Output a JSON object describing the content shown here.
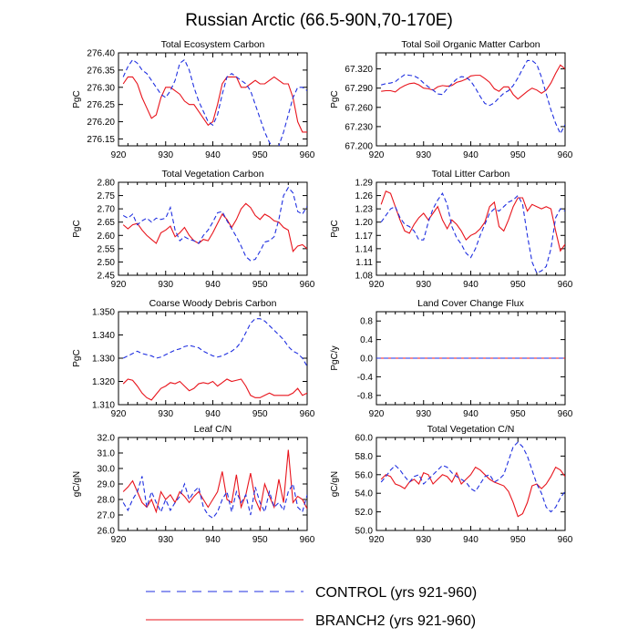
{
  "title": "Russian Arctic (66.5-90N,70-170E)",
  "colors": {
    "control": "#1f2fe0",
    "branch": "#e8141c"
  },
  "legend": {
    "control": "CONTROL (yrs 921-960)",
    "branch": "BRANCH2 (yrs 921-960)"
  },
  "chart_data": [
    {
      "type": "line",
      "title": "Total Ecosystem Carbon",
      "ylabel": "PgC",
      "xlim": [
        920,
        960
      ],
      "xticks": [
        920,
        930,
        940,
        950,
        960
      ],
      "ylim": [
        276.13,
        276.4
      ],
      "yticks": [
        "276.40",
        "276.35",
        "276.30",
        "276.25",
        "276.20",
        "276.15"
      ],
      "x": [
        921,
        922,
        923,
        924,
        925,
        926,
        927,
        928,
        929,
        930,
        931,
        932,
        933,
        934,
        935,
        936,
        937,
        938,
        939,
        940,
        941,
        942,
        943,
        944,
        945,
        946,
        947,
        948,
        949,
        950,
        951,
        952,
        953,
        954,
        955,
        956,
        957,
        958,
        959,
        960
      ],
      "series": [
        {
          "name": "CONTROL",
          "values": [
            276.33,
            276.36,
            276.38,
            276.37,
            276.35,
            276.34,
            276.32,
            276.3,
            276.28,
            276.27,
            276.29,
            276.32,
            276.37,
            276.38,
            276.35,
            276.3,
            276.26,
            276.23,
            276.2,
            276.19,
            276.22,
            276.28,
            276.33,
            276.34,
            276.33,
            276.32,
            276.31,
            276.29,
            276.25,
            276.21,
            276.17,
            276.14,
            276.12,
            276.13,
            276.17,
            276.22,
            276.27,
            276.3,
            276.3,
            276.29
          ]
        },
        {
          "name": "BRANCH2",
          "values": [
            276.31,
            276.33,
            276.33,
            276.31,
            276.27,
            276.24,
            276.21,
            276.22,
            276.27,
            276.3,
            276.3,
            276.29,
            276.28,
            276.26,
            276.25,
            276.25,
            276.23,
            276.21,
            276.19,
            276.2,
            276.25,
            276.31,
            276.33,
            276.33,
            276.33,
            276.3,
            276.3,
            276.31,
            276.32,
            276.31,
            276.31,
            276.32,
            276.33,
            276.32,
            276.31,
            276.31,
            276.27,
            276.2,
            276.17,
            276.17
          ]
        }
      ]
    },
    {
      "type": "line",
      "title": "Total Soil Organic Matter Carbon",
      "ylabel": "PgC",
      "xlim": [
        920,
        960
      ],
      "xticks": [
        920,
        930,
        940,
        950,
        960
      ],
      "ylim": [
        67.2,
        67.345
      ],
      "yticks": [
        "67.320",
        "67.290",
        "67.260",
        "67.230",
        "67.200"
      ],
      "x": [
        921,
        922,
        923,
        924,
        925,
        926,
        927,
        928,
        929,
        930,
        931,
        932,
        933,
        934,
        935,
        936,
        937,
        938,
        939,
        940,
        941,
        942,
        943,
        944,
        945,
        946,
        947,
        948,
        949,
        950,
        951,
        952,
        953,
        954,
        955,
        956,
        957,
        958,
        959,
        960
      ],
      "series": [
        {
          "name": "CONTROL",
          "values": [
            67.295,
            67.297,
            67.298,
            67.3,
            67.306,
            67.311,
            67.31,
            67.309,
            67.305,
            67.298,
            67.292,
            67.287,
            67.281,
            67.28,
            67.289,
            67.297,
            67.304,
            67.308,
            67.307,
            67.301,
            67.29,
            67.277,
            67.266,
            67.263,
            67.267,
            67.275,
            67.282,
            67.286,
            67.294,
            67.306,
            67.32,
            67.333,
            67.333,
            67.327,
            67.307,
            67.281,
            67.256,
            67.235,
            67.219,
            67.233
          ]
        },
        {
          "name": "BRANCH2",
          "values": [
            67.285,
            67.286,
            67.286,
            67.284,
            67.29,
            67.294,
            67.297,
            67.298,
            67.295,
            67.29,
            67.289,
            67.287,
            67.292,
            67.294,
            67.293,
            67.294,
            67.299,
            67.301,
            67.304,
            67.309,
            67.31,
            67.31,
            67.305,
            67.299,
            67.289,
            67.285,
            67.292,
            67.292,
            67.28,
            67.273,
            67.279,
            67.285,
            67.29,
            67.287,
            67.282,
            67.287,
            67.298,
            67.313,
            67.326,
            67.32
          ]
        }
      ]
    },
    {
      "type": "line",
      "title": "Total Vegetation Carbon",
      "ylabel": "PgC",
      "xlim": [
        920,
        960
      ],
      "xticks": [
        920,
        930,
        940,
        950,
        960
      ],
      "ylim": [
        2.45,
        2.8
      ],
      "yticks": [
        "2.80",
        "2.75",
        "2.70",
        "2.65",
        "2.60",
        "2.55",
        "2.50",
        "2.45"
      ],
      "x": [
        921,
        922,
        923,
        924,
        925,
        926,
        927,
        928,
        929,
        930,
        931,
        932,
        933,
        934,
        935,
        936,
        937,
        938,
        939,
        940,
        941,
        942,
        943,
        944,
        945,
        946,
        947,
        948,
        949,
        950,
        951,
        952,
        953,
        954,
        955,
        956,
        957,
        958,
        959,
        960
      ],
      "series": [
        {
          "name": "CONTROL",
          "values": [
            2.675,
            2.665,
            2.68,
            2.64,
            2.655,
            2.665,
            2.65,
            2.665,
            2.66,
            2.665,
            2.705,
            2.62,
            2.58,
            2.595,
            2.585,
            2.58,
            2.57,
            2.6,
            2.62,
            2.65,
            2.685,
            2.69,
            2.655,
            2.625,
            2.595,
            2.56,
            2.52,
            2.505,
            2.51,
            2.54,
            2.575,
            2.58,
            2.595,
            2.66,
            2.75,
            2.78,
            2.76,
            2.69,
            2.68,
            2.71
          ]
        },
        {
          "name": "BRANCH2",
          "values": [
            2.64,
            2.625,
            2.64,
            2.645,
            2.62,
            2.6,
            2.585,
            2.57,
            2.61,
            2.62,
            2.635,
            2.595,
            2.61,
            2.63,
            2.6,
            2.58,
            2.57,
            2.585,
            2.58,
            2.61,
            2.645,
            2.68,
            2.66,
            2.63,
            2.66,
            2.7,
            2.72,
            2.705,
            2.675,
            2.66,
            2.68,
            2.67,
            2.655,
            2.65,
            2.63,
            2.62,
            2.54,
            2.56,
            2.565,
            2.55
          ]
        }
      ]
    },
    {
      "type": "line",
      "title": "Total Litter Carbon",
      "ylabel": "PgC",
      "xlim": [
        920,
        960
      ],
      "xticks": [
        920,
        930,
        940,
        950,
        960
      ],
      "ylim": [
        1.08,
        1.29
      ],
      "yticks": [
        "1.29",
        "1.26",
        "1.23",
        "1.20",
        "1.17",
        "1.14",
        "1.11",
        "1.08"
      ],
      "x": [
        921,
        922,
        923,
        924,
        925,
        926,
        927,
        928,
        929,
        930,
        931,
        932,
        933,
        934,
        935,
        936,
        937,
        938,
        939,
        940,
        941,
        942,
        943,
        944,
        945,
        946,
        947,
        948,
        949,
        950,
        951,
        952,
        953,
        954,
        955,
        956,
        957,
        958,
        959,
        960
      ],
      "series": [
        {
          "name": "CONTROL",
          "values": [
            1.2,
            1.215,
            1.23,
            1.235,
            1.21,
            1.195,
            1.19,
            1.18,
            1.16,
            1.16,
            1.2,
            1.23,
            1.25,
            1.265,
            1.24,
            1.19,
            1.165,
            1.15,
            1.13,
            1.12,
            1.14,
            1.17,
            1.195,
            1.22,
            1.23,
            1.225,
            1.235,
            1.245,
            1.25,
            1.26,
            1.24,
            1.17,
            1.11,
            1.085,
            1.09,
            1.1,
            1.14,
            1.21,
            1.23,
            1.225
          ]
        },
        {
          "name": "BRANCH2",
          "values": [
            1.24,
            1.27,
            1.265,
            1.235,
            1.205,
            1.18,
            1.175,
            1.195,
            1.21,
            1.22,
            1.205,
            1.22,
            1.235,
            1.205,
            1.185,
            1.205,
            1.195,
            1.18,
            1.16,
            1.17,
            1.175,
            1.185,
            1.2,
            1.235,
            1.245,
            1.19,
            1.18,
            1.205,
            1.235,
            1.255,
            1.255,
            1.225,
            1.24,
            1.235,
            1.23,
            1.235,
            1.23,
            1.18,
            1.135,
            1.15
          ]
        }
      ]
    },
    {
      "type": "line",
      "title": "Coarse Woody Debris Carbon",
      "ylabel": "PgC",
      "xlim": [
        920,
        960
      ],
      "xticks": [
        920,
        930,
        940,
        950,
        960
      ],
      "ylim": [
        1.31,
        1.35
      ],
      "yticks": [
        "1.350",
        "1.340",
        "1.330",
        "1.320",
        "1.310"
      ],
      "x": [
        921,
        922,
        923,
        924,
        925,
        926,
        927,
        928,
        929,
        930,
        931,
        932,
        933,
        934,
        935,
        936,
        937,
        938,
        939,
        940,
        941,
        942,
        943,
        944,
        945,
        946,
        947,
        948,
        949,
        950,
        951,
        952,
        953,
        954,
        955,
        956,
        957,
        958,
        959,
        960
      ],
      "series": [
        {
          "name": "CONTROL",
          "values": [
            1.33,
            1.331,
            1.332,
            1.333,
            1.332,
            1.3315,
            1.331,
            1.33,
            1.3305,
            1.3315,
            1.3325,
            1.3335,
            1.334,
            1.335,
            1.3355,
            1.335,
            1.3345,
            1.333,
            1.332,
            1.331,
            1.3305,
            1.331,
            1.332,
            1.333,
            1.3345,
            1.337,
            1.341,
            1.345,
            1.347,
            1.347,
            1.346,
            1.344,
            1.342,
            1.34,
            1.338,
            1.335,
            1.333,
            1.332,
            1.33,
            1.3265
          ]
        },
        {
          "name": "BRANCH2",
          "values": [
            1.319,
            1.321,
            1.3205,
            1.318,
            1.315,
            1.313,
            1.312,
            1.3145,
            1.317,
            1.318,
            1.3195,
            1.319,
            1.32,
            1.318,
            1.316,
            1.317,
            1.319,
            1.3195,
            1.319,
            1.32,
            1.318,
            1.3195,
            1.321,
            1.32,
            1.3205,
            1.321,
            1.318,
            1.314,
            1.313,
            1.313,
            1.314,
            1.315,
            1.314,
            1.314,
            1.314,
            1.314,
            1.315,
            1.317,
            1.314,
            1.315
          ]
        }
      ]
    },
    {
      "type": "line",
      "title": "Land Cover Change Flux",
      "ylabel": "PgC/y",
      "xlim": [
        920,
        960
      ],
      "xticks": [
        920,
        930,
        940,
        950,
        960
      ],
      "ylim": [
        -1.0,
        1.0
      ],
      "yticks": [
        "0.8",
        "0.4",
        "0.0",
        "-0.4",
        "-0.8"
      ],
      "ytick_values": [
        0.8,
        0.4,
        0.0,
        -0.4,
        -0.8
      ],
      "x": [
        920,
        960
      ],
      "series": [
        {
          "name": "CONTROL",
          "values": [
            0.0,
            0.0
          ]
        },
        {
          "name": "BRANCH2",
          "values": [
            0.0,
            0.0
          ]
        }
      ]
    },
    {
      "type": "line",
      "title": "Leaf C/N",
      "ylabel": "gC/gN",
      "xlim": [
        920,
        960
      ],
      "xticks": [
        920,
        930,
        940,
        950,
        960
      ],
      "ylim": [
        26.0,
        32.0
      ],
      "yticks": [
        "32.0",
        "31.0",
        "30.0",
        "29.0",
        "28.0",
        "27.0",
        "26.0"
      ],
      "x": [
        921,
        922,
        923,
        924,
        925,
        926,
        927,
        928,
        929,
        930,
        931,
        932,
        933,
        934,
        935,
        936,
        937,
        938,
        939,
        940,
        941,
        942,
        943,
        944,
        945,
        946,
        947,
        948,
        949,
        950,
        951,
        952,
        953,
        954,
        955,
        956,
        957,
        958,
        959,
        960
      ],
      "series": [
        {
          "name": "CONTROL",
          "values": [
            27.8,
            27.3,
            28.0,
            28.5,
            29.5,
            27.5,
            28.5,
            27.8,
            27.2,
            28.0,
            27.3,
            27.8,
            28.2,
            29.0,
            28.0,
            28.5,
            28.8,
            27.5,
            27.0,
            26.8,
            27.2,
            28.0,
            28.5,
            27.2,
            28.5,
            27.8,
            28.3,
            27.0,
            28.8,
            27.8,
            27.2,
            28.5,
            27.5,
            27.8,
            27.3,
            28.5,
            29.0,
            27.5,
            27.2,
            28.3
          ]
        },
        {
          "name": "BRANCH2",
          "values": [
            28.5,
            28.8,
            29.2,
            28.5,
            27.8,
            27.5,
            28.0,
            27.2,
            28.5,
            28.0,
            28.3,
            27.8,
            28.5,
            28.2,
            27.8,
            28.2,
            28.5,
            28.0,
            27.5,
            28.0,
            28.5,
            29.8,
            28.0,
            27.8,
            29.6,
            27.5,
            28.3,
            29.7,
            28.0,
            27.3,
            29.0,
            28.2,
            27.5,
            29.3,
            27.8,
            31.2,
            27.8,
            28.2,
            28.0,
            27.4
          ]
        }
      ]
    },
    {
      "type": "line",
      "title": "Total Vegetation C/N",
      "ylabel": "gC/gN",
      "xlim": [
        920,
        960
      ],
      "xticks": [
        920,
        930,
        940,
        950,
        960
      ],
      "ylim": [
        50.0,
        60.0
      ],
      "yticks": [
        "60.0",
        "58.0",
        "56.0",
        "54.0",
        "52.0",
        "50.0"
      ],
      "x": [
        921,
        922,
        923,
        924,
        925,
        926,
        927,
        928,
        929,
        930,
        931,
        932,
        933,
        934,
        935,
        936,
        937,
        938,
        939,
        940,
        941,
        942,
        943,
        944,
        945,
        946,
        947,
        948,
        949,
        950,
        951,
        952,
        953,
        954,
        955,
        956,
        957,
        958,
        959,
        960
      ],
      "series": [
        {
          "name": "CONTROL",
          "values": [
            55.2,
            55.8,
            56.5,
            57.0,
            56.5,
            55.8,
            55.2,
            55.8,
            56.0,
            55.0,
            55.5,
            56.0,
            56.5,
            57.0,
            56.8,
            56.2,
            55.8,
            55.5,
            55.2,
            54.5,
            54.2,
            55.0,
            55.8,
            56.0,
            55.2,
            55.5,
            56.0,
            57.5,
            59.0,
            59.5,
            59.0,
            58.0,
            56.5,
            55.0,
            54.0,
            52.5,
            52.0,
            52.5,
            53.5,
            54.2
          ]
        },
        {
          "name": "BRANCH2",
          "values": [
            55.5,
            56.0,
            55.8,
            55.0,
            54.8,
            54.5,
            55.2,
            55.5,
            55.0,
            56.2,
            56.0,
            55.0,
            55.5,
            56.0,
            55.8,
            55.2,
            56.2,
            55.0,
            55.5,
            56.0,
            56.8,
            56.5,
            56.0,
            55.5,
            55.2,
            55.0,
            54.8,
            54.2,
            53.0,
            51.5,
            51.8,
            53.0,
            54.8,
            55.0,
            54.5,
            55.0,
            55.8,
            56.8,
            56.5,
            55.8
          ]
        }
      ]
    }
  ]
}
